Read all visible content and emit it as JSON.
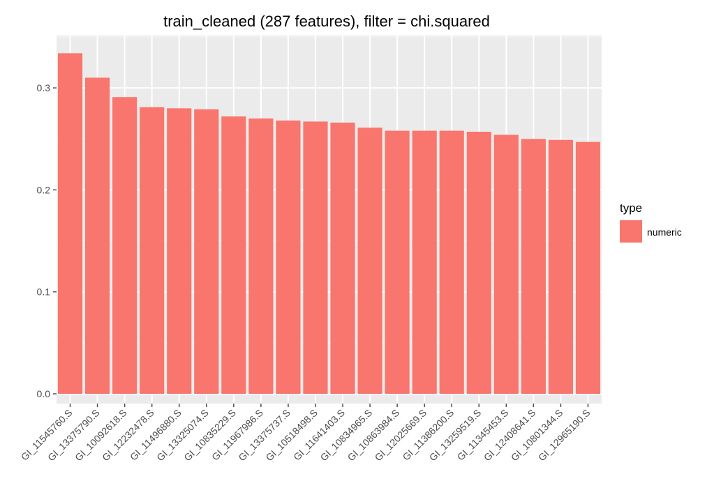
{
  "chart_data": {
    "type": "bar",
    "title": "train_cleaned (287 features), filter = chi.squared",
    "xlabel": "",
    "ylabel": "",
    "ylim": [
      0,
      0.345
    ],
    "y_ticks": [
      "0.0",
      "0.1",
      "0.2",
      "0.3"
    ],
    "y_tick_values": [
      0,
      0.1,
      0.2,
      0.3
    ],
    "grid": true,
    "legend_position": "right",
    "categories": [
      "GI_11545760.S",
      "GI_13375790.S",
      "GI_10092618.S",
      "GI_12232478.S",
      "GI_11496880.S",
      "GI_13325074.S",
      "GI_10835229.S",
      "GI_11967986.S",
      "GI_13375737.S",
      "GI_10518498.S",
      "GI_11641403.S",
      "GI_10834965.S",
      "GI_10863984.S",
      "GI_12025669.S",
      "GI_11386200.S",
      "GI_13259519.S",
      "GI_11345453.S",
      "GI_12408641.S",
      "GI_10801344.S",
      "GI_12965190.S"
    ],
    "series": [
      {
        "name": "numeric",
        "values": [
          0.334,
          0.31,
          0.291,
          0.281,
          0.28,
          0.279,
          0.272,
          0.27,
          0.268,
          0.267,
          0.266,
          0.261,
          0.258,
          0.258,
          0.258,
          0.257,
          0.254,
          0.25,
          0.249,
          0.247
        ]
      }
    ],
    "legend": {
      "title": "type",
      "entries": [
        "numeric"
      ]
    },
    "colors": {
      "bar": "#F8766D",
      "panel": "#EBEBEB",
      "grid_major": "#FFFFFF",
      "grid_minor": "#F5F5F5",
      "tick": "#4D4D4D"
    }
  }
}
